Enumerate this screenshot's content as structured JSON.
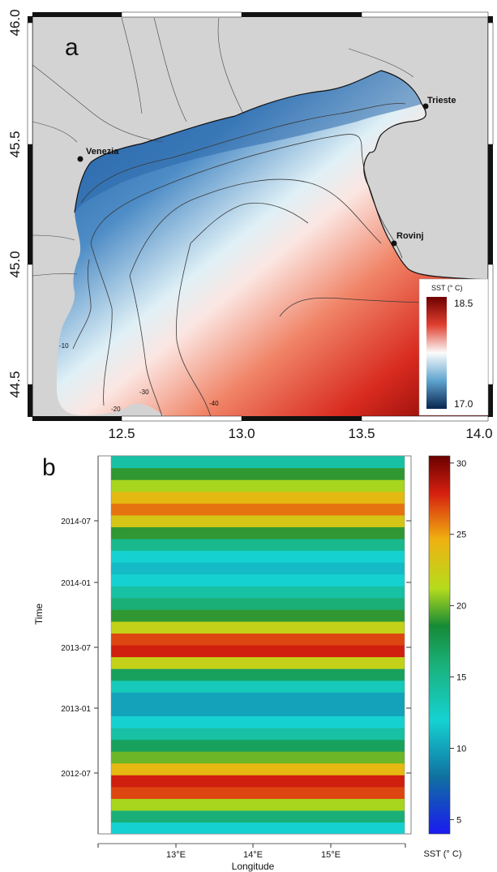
{
  "panel_a": {
    "label": "a",
    "x_ticks": [
      "12.5",
      "13.0",
      "13.5",
      "14.0"
    ],
    "y_ticks": [
      "44.5",
      "45.0",
      "45.5",
      "46.0"
    ],
    "cities": [
      {
        "name": "Venezia",
        "lon": 12.33,
        "lat": 45.43
      },
      {
        "name": "Trieste",
        "lon": 13.77,
        "lat": 45.65
      },
      {
        "name": "Rovinj",
        "lon": 13.64,
        "lat": 45.08
      }
    ],
    "contour_labels": [
      "-10",
      "-20",
      "-30",
      "-40"
    ],
    "legend": {
      "title": "SST (° C)",
      "max": "18.5",
      "min": "17.0"
    }
  },
  "panel_b": {
    "label": "b",
    "y_axis_title": "Time",
    "x_axis_title": "Longitude",
    "y_ticks": [
      "2014-07",
      "2014-01",
      "2013-07",
      "2013-01",
      "2012-07"
    ],
    "x_ticks": [
      "13°E",
      "14°E",
      "15°E"
    ],
    "colorbar_ticks": [
      "30",
      "25",
      "20",
      "15",
      "10",
      "5"
    ],
    "colorbar_title": "SST (° C)"
  },
  "chart_data": {
    "type": "heatmap",
    "x": "Longitude",
    "y": "Time",
    "xlim": [
      12.2,
      16.0
    ],
    "ylim": [
      "2012-03",
      "2014-11"
    ],
    "colorbar_range": [
      4,
      30.5
    ],
    "note_values": "approximate SST bands by month",
    "bands": [
      {
        "month": "2012-03",
        "sst": 12
      },
      {
        "month": "2012-05",
        "sst": 16
      },
      {
        "month": "2012-06",
        "sst": 21
      },
      {
        "month": "2012-07",
        "sst": 27
      },
      {
        "month": "2012-08",
        "sst": 28
      },
      {
        "month": "2012-09",
        "sst": 24
      },
      {
        "month": "2012-10",
        "sst": 20
      },
      {
        "month": "2012-11",
        "sst": 17
      },
      {
        "month": "2012-12",
        "sst": 14
      },
      {
        "month": "2013-01",
        "sst": 12
      },
      {
        "month": "2013-02",
        "sst": 10
      },
      {
        "month": "2013-03",
        "sst": 10
      },
      {
        "month": "2013-04",
        "sst": 13
      },
      {
        "month": "2013-05",
        "sst": 17
      },
      {
        "month": "2013-06",
        "sst": 22
      },
      {
        "month": "2013-07",
        "sst": 28
      },
      {
        "month": "2013-08",
        "sst": 27
      },
      {
        "month": "2013-09",
        "sst": 22
      },
      {
        "month": "2013-10",
        "sst": 19
      },
      {
        "month": "2013-11",
        "sst": 16
      },
      {
        "month": "2013-12",
        "sst": 14
      },
      {
        "month": "2014-01",
        "sst": 12
      },
      {
        "month": "2014-02",
        "sst": 11
      },
      {
        "month": "2014-03",
        "sst": 12
      },
      {
        "month": "2014-04",
        "sst": 15
      },
      {
        "month": "2014-05",
        "sst": 19
      },
      {
        "month": "2014-06",
        "sst": 23
      },
      {
        "month": "2014-07",
        "sst": 26
      },
      {
        "month": "2014-08",
        "sst": 24
      },
      {
        "month": "2014-09",
        "sst": 21
      },
      {
        "month": "2014-10",
        "sst": 19
      },
      {
        "month": "2014-11",
        "sst": 14
      }
    ]
  }
}
